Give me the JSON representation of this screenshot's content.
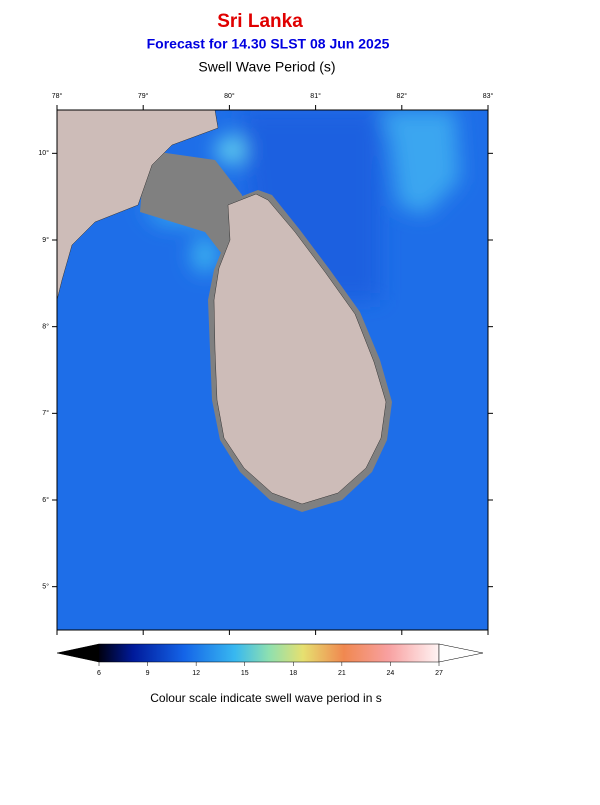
{
  "header": {
    "title": "Sri Lanka",
    "subtitle": "Forecast for  14.30 SLST 08 Jun 2025",
    "variable": "Swell Wave Period (s)"
  },
  "map": {
    "lon_range": [
      78,
      83
    ],
    "lat_range": [
      4.5,
      10.5
    ],
    "lon_ticks": [
      {
        "value": 78,
        "label": "78°"
      },
      {
        "value": 79,
        "label": "79°"
      },
      {
        "value": 80,
        "label": "80°"
      },
      {
        "value": 81,
        "label": "81°"
      },
      {
        "value": 82,
        "label": "82°"
      },
      {
        "value": 83,
        "label": "83°"
      }
    ],
    "lat_ticks": [
      {
        "value": 5,
        "label": "5°"
      },
      {
        "value": 6,
        "label": "6°"
      },
      {
        "value": 7,
        "label": "7°"
      },
      {
        "value": 8,
        "label": "8°"
      },
      {
        "value": 9,
        "label": "9°"
      },
      {
        "value": 10,
        "label": "10°"
      }
    ]
  },
  "colorbar": {
    "range": [
      6,
      27
    ],
    "ticks": [
      6,
      9,
      12,
      15,
      18,
      21,
      24,
      27
    ]
  },
  "caption": "Colour scale indicate swell wave period in s"
}
